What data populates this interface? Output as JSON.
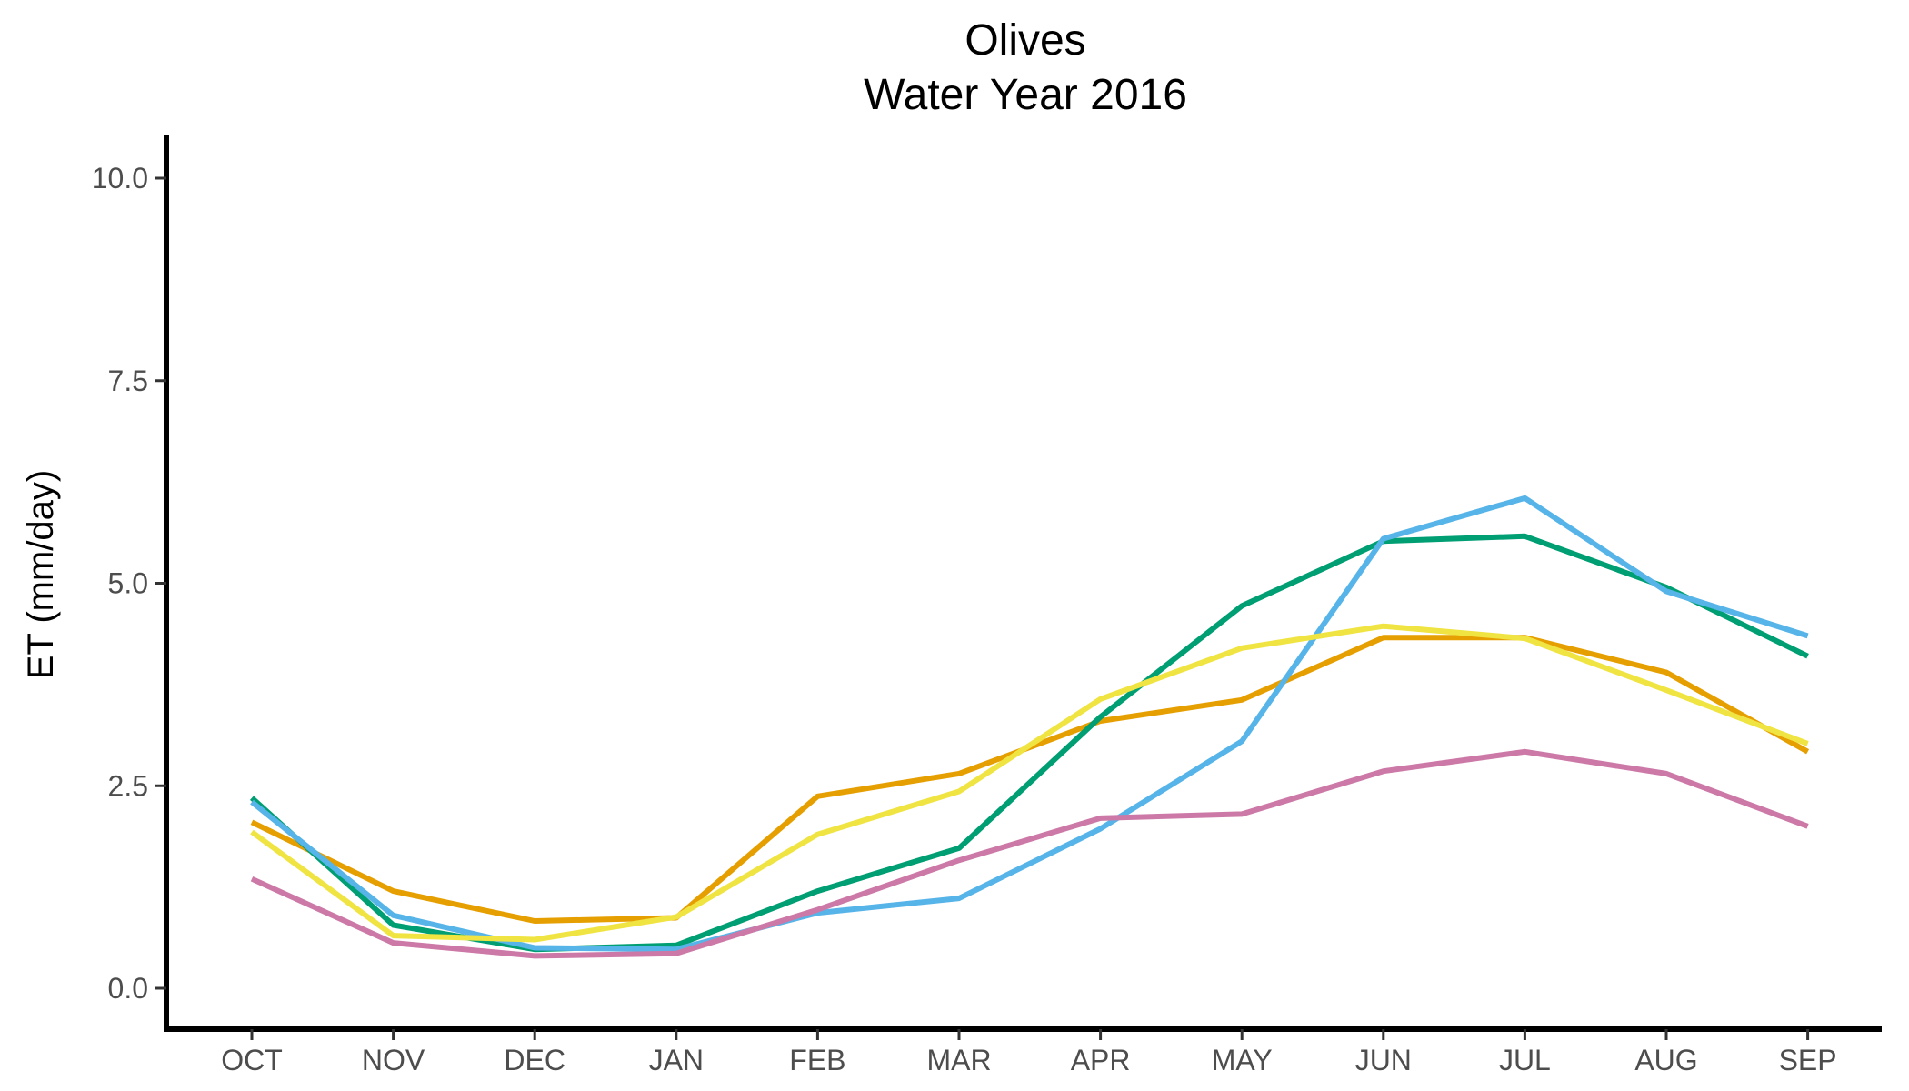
{
  "chart_data": {
    "type": "line",
    "title": [
      "Olives",
      "Water Year 2016"
    ],
    "ylabel": "ET (mm/day)",
    "xlabel": "",
    "categories": [
      "OCT",
      "NOV",
      "DEC",
      "JAN",
      "FEB",
      "MAR",
      "APR",
      "MAY",
      "JUN",
      "JUL",
      "AUG",
      "SEP"
    ],
    "ylim": [
      -0.5,
      10.5
    ],
    "yticks": [
      0.0,
      2.5,
      5.0,
      7.5,
      10.0
    ],
    "ytick_labels": [
      "0.0",
      "2.5",
      "5.0",
      "7.5",
      "10.0"
    ],
    "grid": false,
    "legend": "none",
    "series": [
      {
        "color": "#E69F00",
        "values": [
          2.05,
          1.2,
          0.83,
          0.87,
          2.37,
          2.65,
          3.3,
          3.56,
          4.33,
          4.33,
          3.9,
          2.92
        ]
      },
      {
        "color": "#009E73",
        "values": [
          2.35,
          0.78,
          0.48,
          0.53,
          1.2,
          1.73,
          3.35,
          4.72,
          5.52,
          5.58,
          4.95,
          4.1
        ]
      },
      {
        "color": "#56B4E9",
        "values": [
          2.3,
          0.9,
          0.5,
          0.48,
          0.93,
          1.11,
          1.97,
          3.05,
          5.55,
          6.05,
          4.9,
          4.35
        ]
      },
      {
        "color": "#F0E442",
        "values": [
          1.93,
          0.65,
          0.6,
          0.88,
          1.9,
          2.43,
          3.57,
          4.2,
          4.47,
          4.32,
          3.68,
          3.02
        ]
      },
      {
        "color": "#CC79A7",
        "values": [
          1.35,
          0.56,
          0.4,
          0.43,
          0.97,
          1.58,
          2.1,
          2.15,
          2.68,
          2.92,
          2.65,
          2.0
        ]
      }
    ]
  }
}
